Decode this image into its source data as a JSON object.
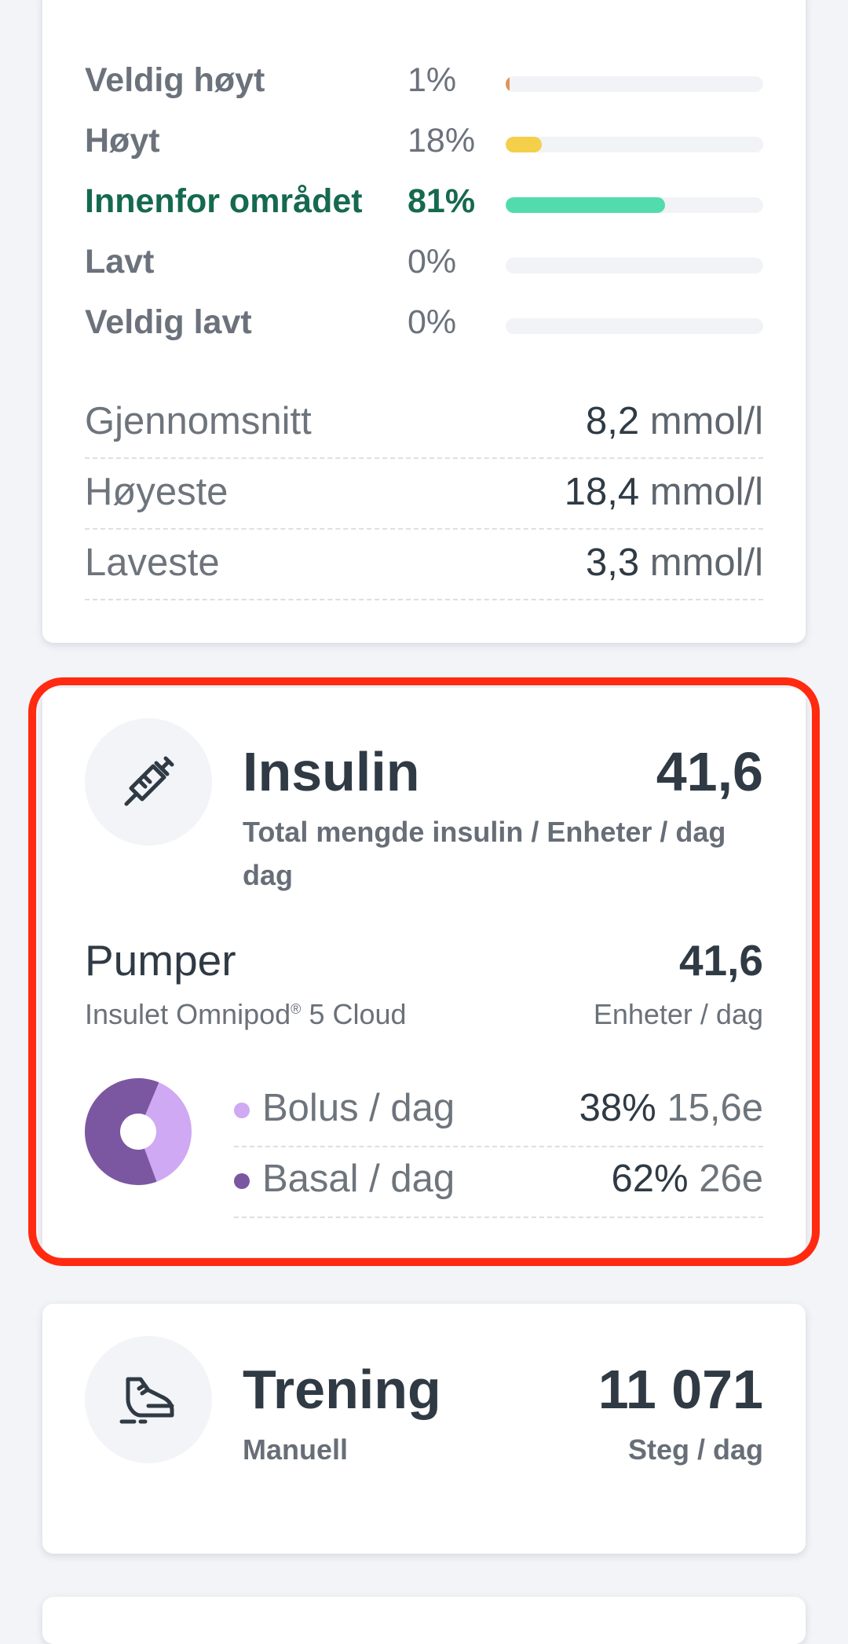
{
  "glucose": {
    "ranges": [
      {
        "label": "Veldig høyt",
        "percent": "1%",
        "fraction": 0.01,
        "color": "#e0935a"
      },
      {
        "label": "Høyt",
        "percent": "18%",
        "fraction": 0.14,
        "color": "#f4cf4a"
      },
      {
        "label": "Innenfor området",
        "percent": "81%",
        "fraction": 0.62,
        "color": "#52dcae"
      },
      {
        "label": "Lavt",
        "percent": "0%",
        "fraction": 0,
        "color": "#e35d5d"
      },
      {
        "label": "Veldig lavt",
        "percent": "0%",
        "fraction": 0,
        "color": "#b33a3a"
      }
    ],
    "stats": [
      {
        "label": "Gjennomsnitt",
        "value": "8,2",
        "unit": "mmol/l"
      },
      {
        "label": "Høyeste",
        "value": "18,4",
        "unit": "mmol/l"
      },
      {
        "label": "Laveste",
        "value": "3,3",
        "unit": "mmol/l"
      }
    ]
  },
  "insulin": {
    "icon": "syringe-icon",
    "title": "Insulin",
    "total": "41,6",
    "subtitle": "Total mengde insulin / Enheter / dag",
    "subtitle_line2": "dag",
    "pump": {
      "title": "Pumper",
      "device": "Insulet Omnipod",
      "device_mark": "®",
      "device_suffix": "5 Cloud",
      "value": "41,6",
      "unit": "Enheter / dag"
    },
    "split": [
      {
        "label": "Bolus / dag",
        "percent": "38%",
        "units": "15,6e",
        "fraction": 0.38,
        "color": "#cfa9f3"
      },
      {
        "label": "Basal / dag",
        "percent": "62%",
        "units": "26e",
        "fraction": 0.62,
        "color": "#7b57a1"
      }
    ]
  },
  "training": {
    "icon": "sneaker-icon",
    "title": "Trening",
    "source": "Manuell",
    "value": "11 071",
    "unit": "Steg / dag"
  }
}
